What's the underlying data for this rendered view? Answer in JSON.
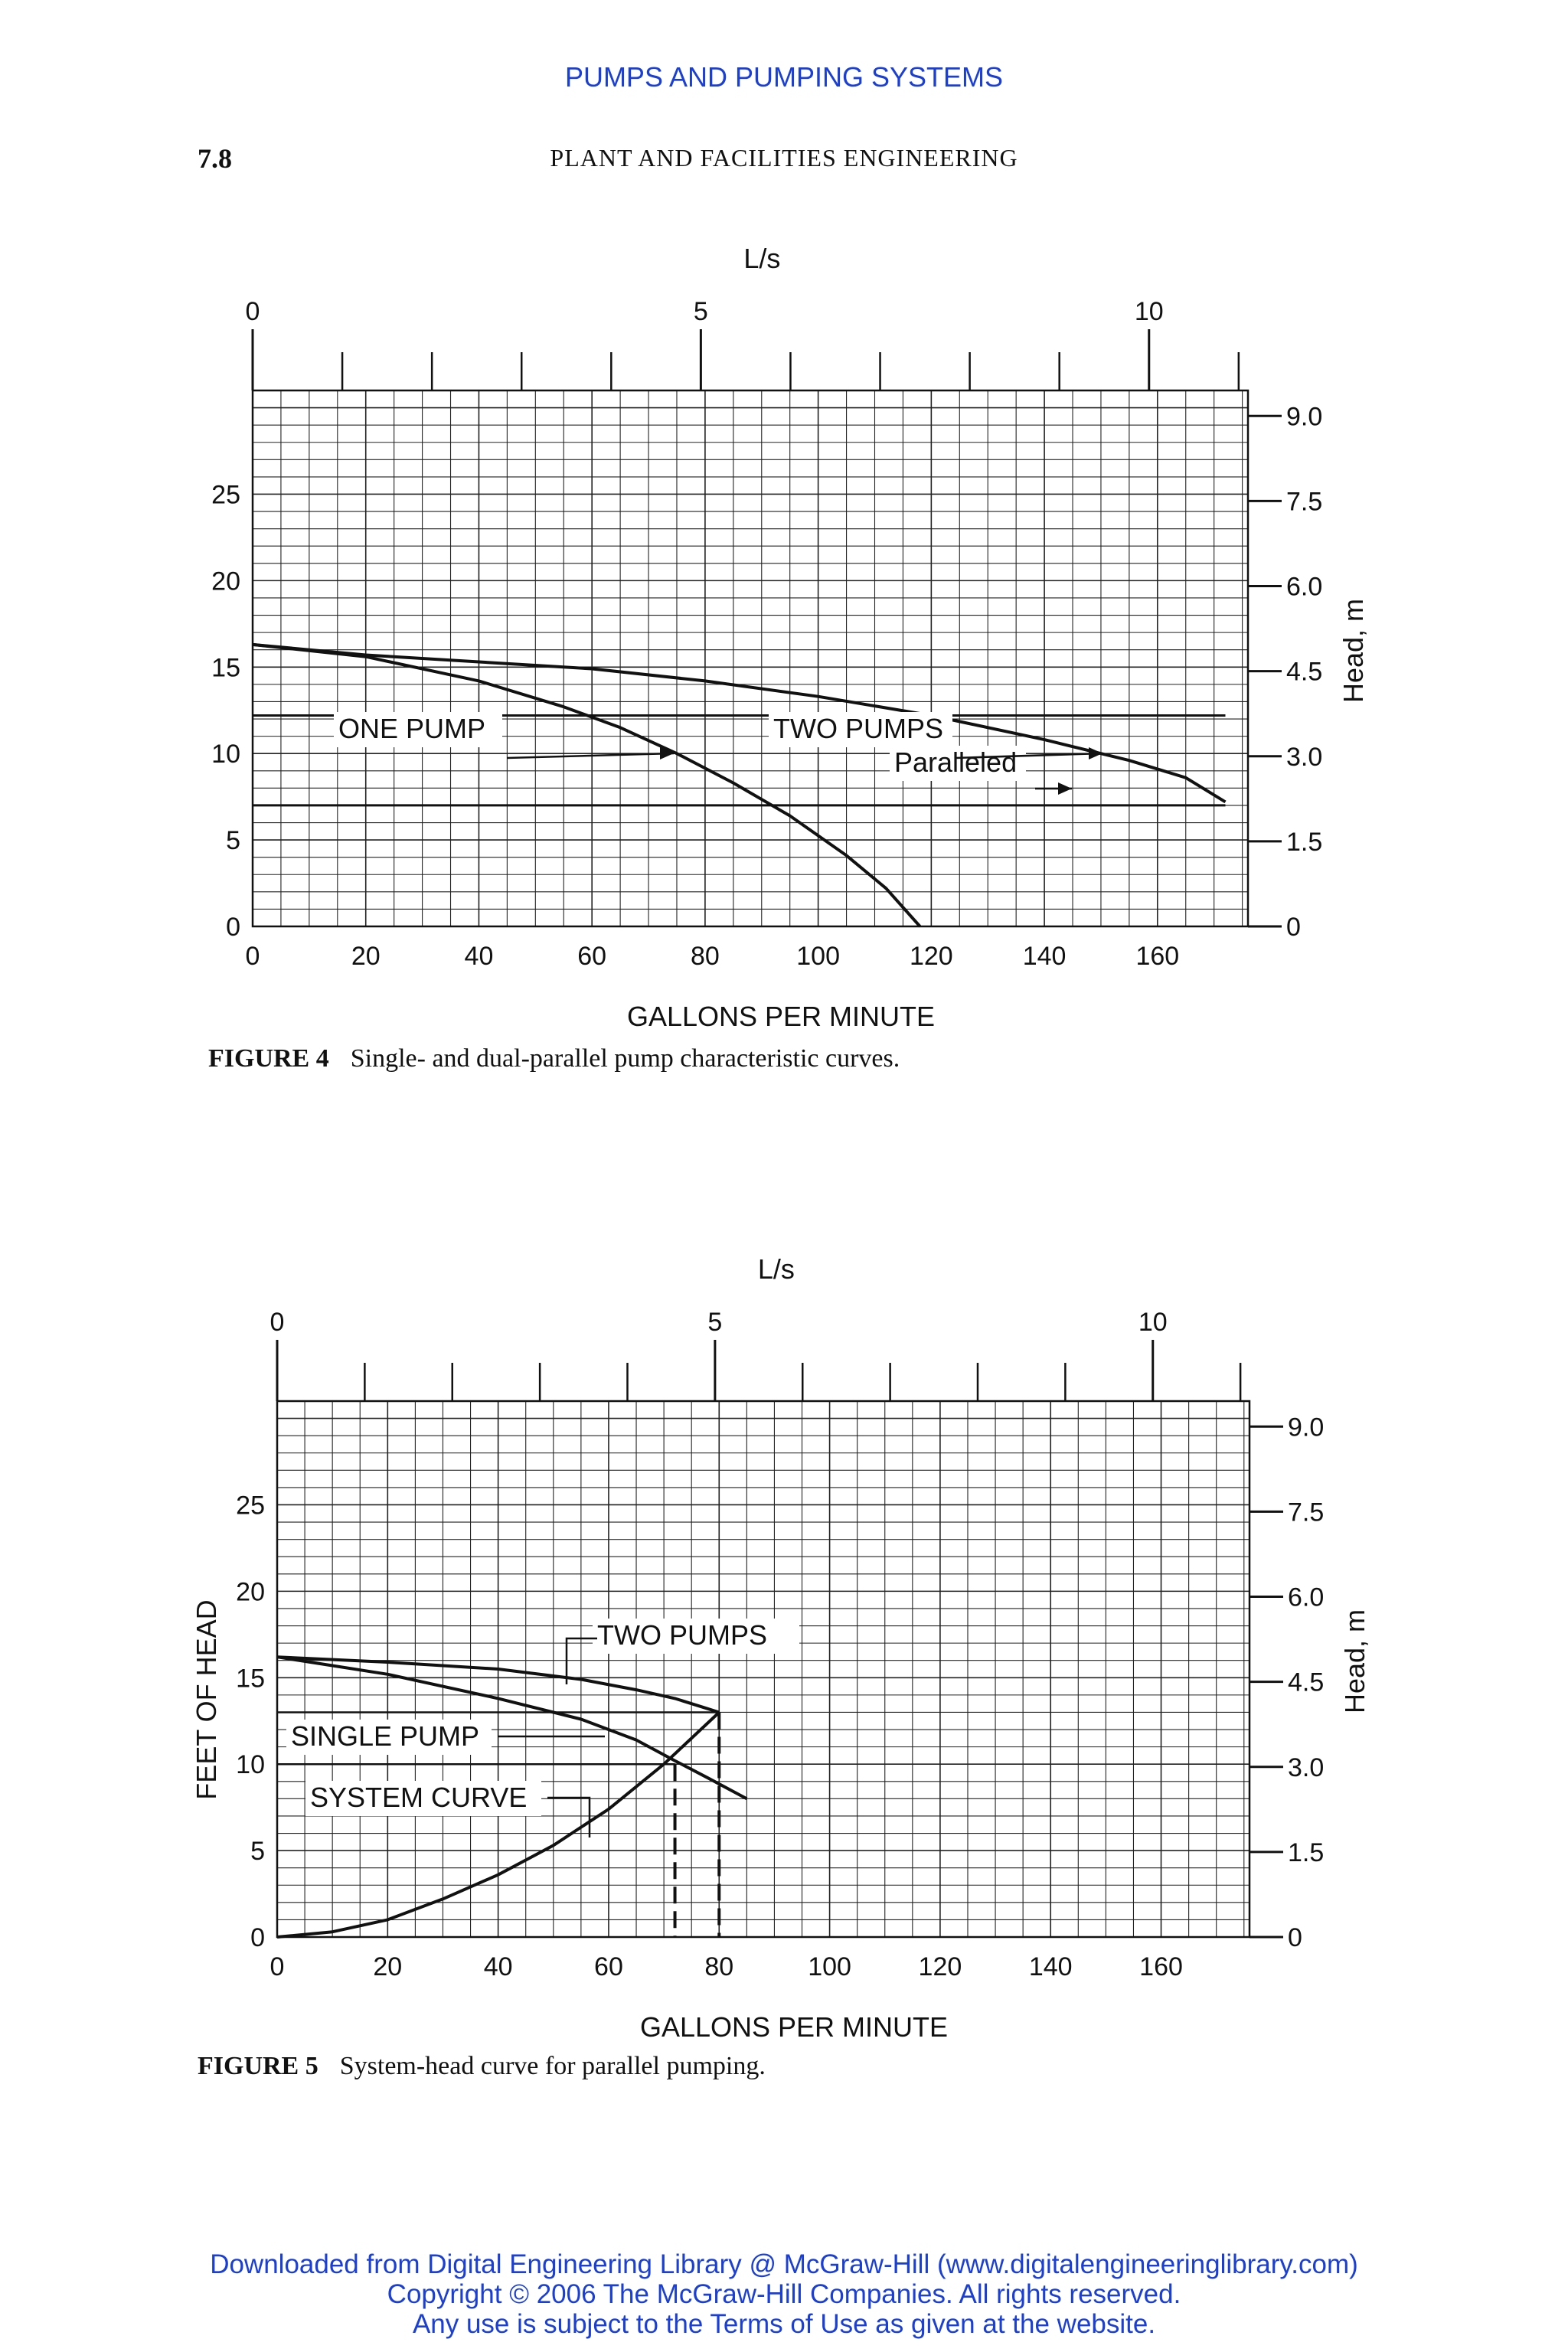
{
  "header": {
    "running_head": "PUMPS AND PUMPING SYSTEMS",
    "page_number": "7.8",
    "book_title": "PLANT AND FACILITIES ENGINEERING"
  },
  "figures": {
    "fig4": {
      "label": "FIGURE 4",
      "caption": "Single- and dual-parallel pump characteristic curves."
    },
    "fig5": {
      "label": "FIGURE 5",
      "caption": "System-head curve for parallel pumping."
    }
  },
  "footer": {
    "line1": "Downloaded from Digital Engineering Library @ McGraw-Hill (www.digitalengineeringlibrary.com)",
    "line2": "Copyright © 2006 The McGraw-Hill Companies. All rights reserved.",
    "line3": "Any use is subject to the Terms of Use as given at the website."
  },
  "colors": {
    "link_blue": "#1a3fd6",
    "ink": "#111111"
  },
  "chart_data": [
    {
      "id": "fig4",
      "type": "line",
      "title": "",
      "xlabel": "GALLONS PER MINUTE",
      "ylabel": "",
      "top_axis_label": "L/s",
      "right_axis_label": "Head, m",
      "xlim": [
        0,
        176
      ],
      "ylim": [
        0,
        31
      ],
      "x_ticks": [
        0,
        20,
        40,
        60,
        80,
        100,
        120,
        140,
        160
      ],
      "x_tick_labels": [
        "0",
        "20",
        "40",
        "60",
        "80",
        "100",
        "120",
        "140",
        "160"
      ],
      "y_ticks": [
        0,
        5,
        10,
        15,
        20,
        25
      ],
      "y_tick_labels": [
        "0",
        "5",
        "10",
        "15",
        "20",
        "25"
      ],
      "top_ticks": [
        0,
        5,
        10
      ],
      "top_tick_labels": [
        "0",
        "5",
        "10"
      ],
      "right_ticks": [
        0,
        1.5,
        3.0,
        4.5,
        6.0,
        7.5,
        9.0
      ],
      "right_tick_labels": [
        "0",
        "1.5",
        "3.0",
        "4.5",
        "6.0",
        "7.5",
        "9.0"
      ],
      "grid": true,
      "series": [
        {
          "name": "ONE PUMP",
          "x": [
            0,
            20,
            40,
            55,
            65,
            75,
            85,
            95,
            105,
            112,
            118
          ],
          "y": [
            16.3,
            15.6,
            14.2,
            12.7,
            11.5,
            10.0,
            8.3,
            6.4,
            4.1,
            2.2,
            0
          ]
        },
        {
          "name": "TWO PUMPS Paralleled",
          "x": [
            0,
            20,
            40,
            60,
            80,
            100,
            120,
            140,
            155,
            165,
            172
          ],
          "y": [
            16.3,
            15.7,
            15.3,
            14.9,
            14.2,
            13.3,
            12.2,
            10.8,
            9.6,
            8.6,
            7.2
          ]
        },
        {
          "name": "reference-12.2",
          "x": [
            0,
            172
          ],
          "y": [
            12.2,
            12.2
          ]
        },
        {
          "name": "reference-7.0",
          "x": [
            0,
            172
          ],
          "y": [
            7.0,
            7.0
          ]
        }
      ],
      "annotations": [
        {
          "text": "ONE PUMP",
          "x": 15,
          "y": 10
        },
        {
          "text": "TWO PUMPS",
          "x": 93,
          "y": 10
        },
        {
          "text": "Paralleled",
          "x": 115,
          "y": 8
        }
      ]
    },
    {
      "id": "fig5",
      "type": "line",
      "title": "",
      "xlabel": "GALLONS PER MINUTE",
      "ylabel": "FEET OF HEAD",
      "top_axis_label": "L/s",
      "right_axis_label": "Head, m",
      "xlim": [
        0,
        176
      ],
      "ylim": [
        0,
        31
      ],
      "x_ticks": [
        0,
        20,
        40,
        60,
        80,
        100,
        120,
        140,
        160
      ],
      "x_tick_labels": [
        "0",
        "20",
        "40",
        "60",
        "80",
        "100",
        "120",
        "140",
        "160"
      ],
      "y_ticks": [
        0,
        5,
        10,
        15,
        20,
        25
      ],
      "y_tick_labels": [
        "0",
        "5",
        "10",
        "15",
        "20",
        "25"
      ],
      "top_ticks": [
        0,
        5,
        10
      ],
      "top_tick_labels": [
        "0",
        "5",
        "10"
      ],
      "right_ticks": [
        0,
        1.5,
        3.0,
        4.5,
        6.0,
        7.5,
        9.0
      ],
      "right_tick_labels": [
        "0",
        "1.5",
        "3.0",
        "4.5",
        "6.0",
        "7.5",
        "9.0"
      ],
      "grid": true,
      "series": [
        {
          "name": "TWO PUMPS",
          "x": [
            0,
            20,
            40,
            55,
            65,
            72,
            77,
            80
          ],
          "y": [
            16.2,
            15.9,
            15.5,
            14.9,
            14.3,
            13.8,
            13.3,
            13.0
          ]
        },
        {
          "name": "SINGLE PUMP",
          "x": [
            0,
            20,
            40,
            55,
            65,
            72,
            78,
            85
          ],
          "y": [
            16.2,
            15.2,
            13.8,
            12.6,
            11.4,
            10.2,
            9.2,
            8.0
          ]
        },
        {
          "name": "SYSTEM CURVE",
          "x": [
            0,
            10,
            20,
            30,
            40,
            50,
            60,
            70,
            80
          ],
          "y": [
            0,
            0.3,
            1.0,
            2.2,
            3.6,
            5.3,
            7.4,
            10.0,
            13.0
          ]
        }
      ],
      "operating_points": [
        {
          "gpm": 72,
          "head_ft": 10.0
        },
        {
          "gpm": 80,
          "head_ft": 13.0
        }
      ],
      "annotations": [
        {
          "text": "TWO PUMPS",
          "x": 58,
          "y": 17.5
        },
        {
          "text": "SINGLE PUMP",
          "x": 3,
          "y": 11
        },
        {
          "text": "SYSTEM CURVE",
          "x": 7,
          "y": 7.5
        }
      ]
    }
  ]
}
